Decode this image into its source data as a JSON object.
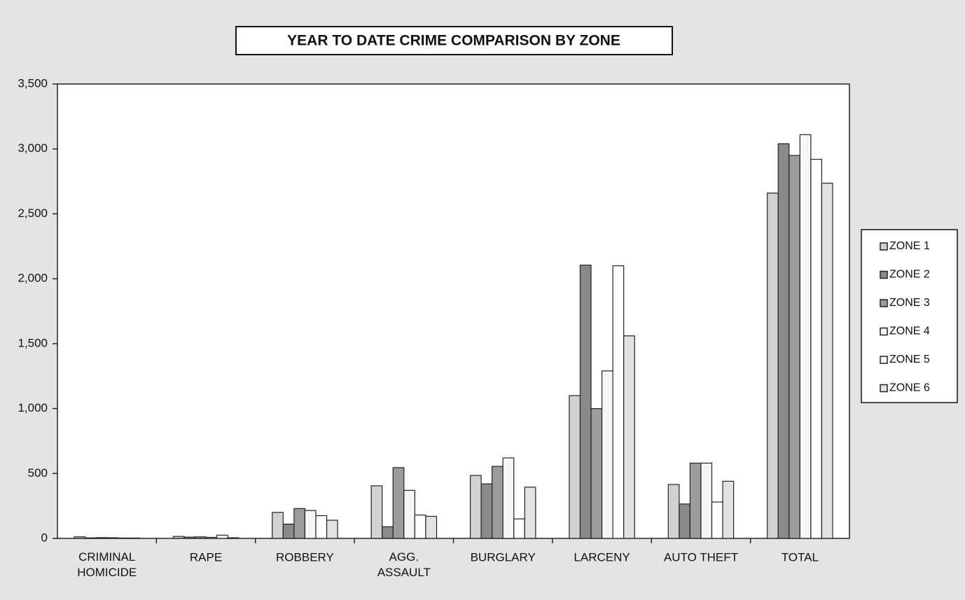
{
  "chart_data": {
    "type": "bar",
    "title": "YEAR TO DATE CRIME COMPARISON BY ZONE",
    "categories": [
      "CRIMINAL\nHOMICIDE",
      "RAPE",
      "ROBBERY",
      "AGG.\nASSAULT",
      "BURGLARY",
      "LARCENY",
      "AUTO THEFT",
      "TOTAL"
    ],
    "series": [
      {
        "name": "ZONE 1",
        "color": "#d2d2d2",
        "values": [
          12,
          15,
          200,
          405,
          485,
          1100,
          415,
          2660
        ]
      },
      {
        "name": "ZONE 2",
        "color": "#8a8a8a",
        "values": [
          4,
          10,
          110,
          90,
          420,
          2105,
          265,
          3040
        ]
      },
      {
        "name": "ZONE 3",
        "color": "#9c9c9c",
        "values": [
          6,
          12,
          230,
          545,
          555,
          1000,
          580,
          2950
        ]
      },
      {
        "name": "ZONE 4",
        "color": "#f6f6f6",
        "values": [
          5,
          8,
          215,
          370,
          620,
          1290,
          580,
          3110
        ]
      },
      {
        "name": "ZONE 5",
        "color": "#ffffff",
        "values": [
          3,
          25,
          175,
          180,
          150,
          2100,
          280,
          2920
        ]
      },
      {
        "name": "ZONE 6",
        "color": "#e2e2e2",
        "values": [
          3,
          5,
          140,
          170,
          395,
          1560,
          440,
          2736
        ]
      }
    ],
    "ylim": [
      0,
      3500
    ],
    "yticks": [
      0,
      500,
      {
        "value": 1000,
        "label": "1,000"
      },
      {
        "value": 1500,
        "label": "1,500"
      },
      {
        "value": 2000,
        "label": "2,000"
      },
      {
        "value": 2500,
        "label": "2,500"
      },
      {
        "value": 3000,
        "label": "3,000"
      },
      {
        "value": 3500,
        "label": "3,500"
      }
    ],
    "legend": "right"
  }
}
